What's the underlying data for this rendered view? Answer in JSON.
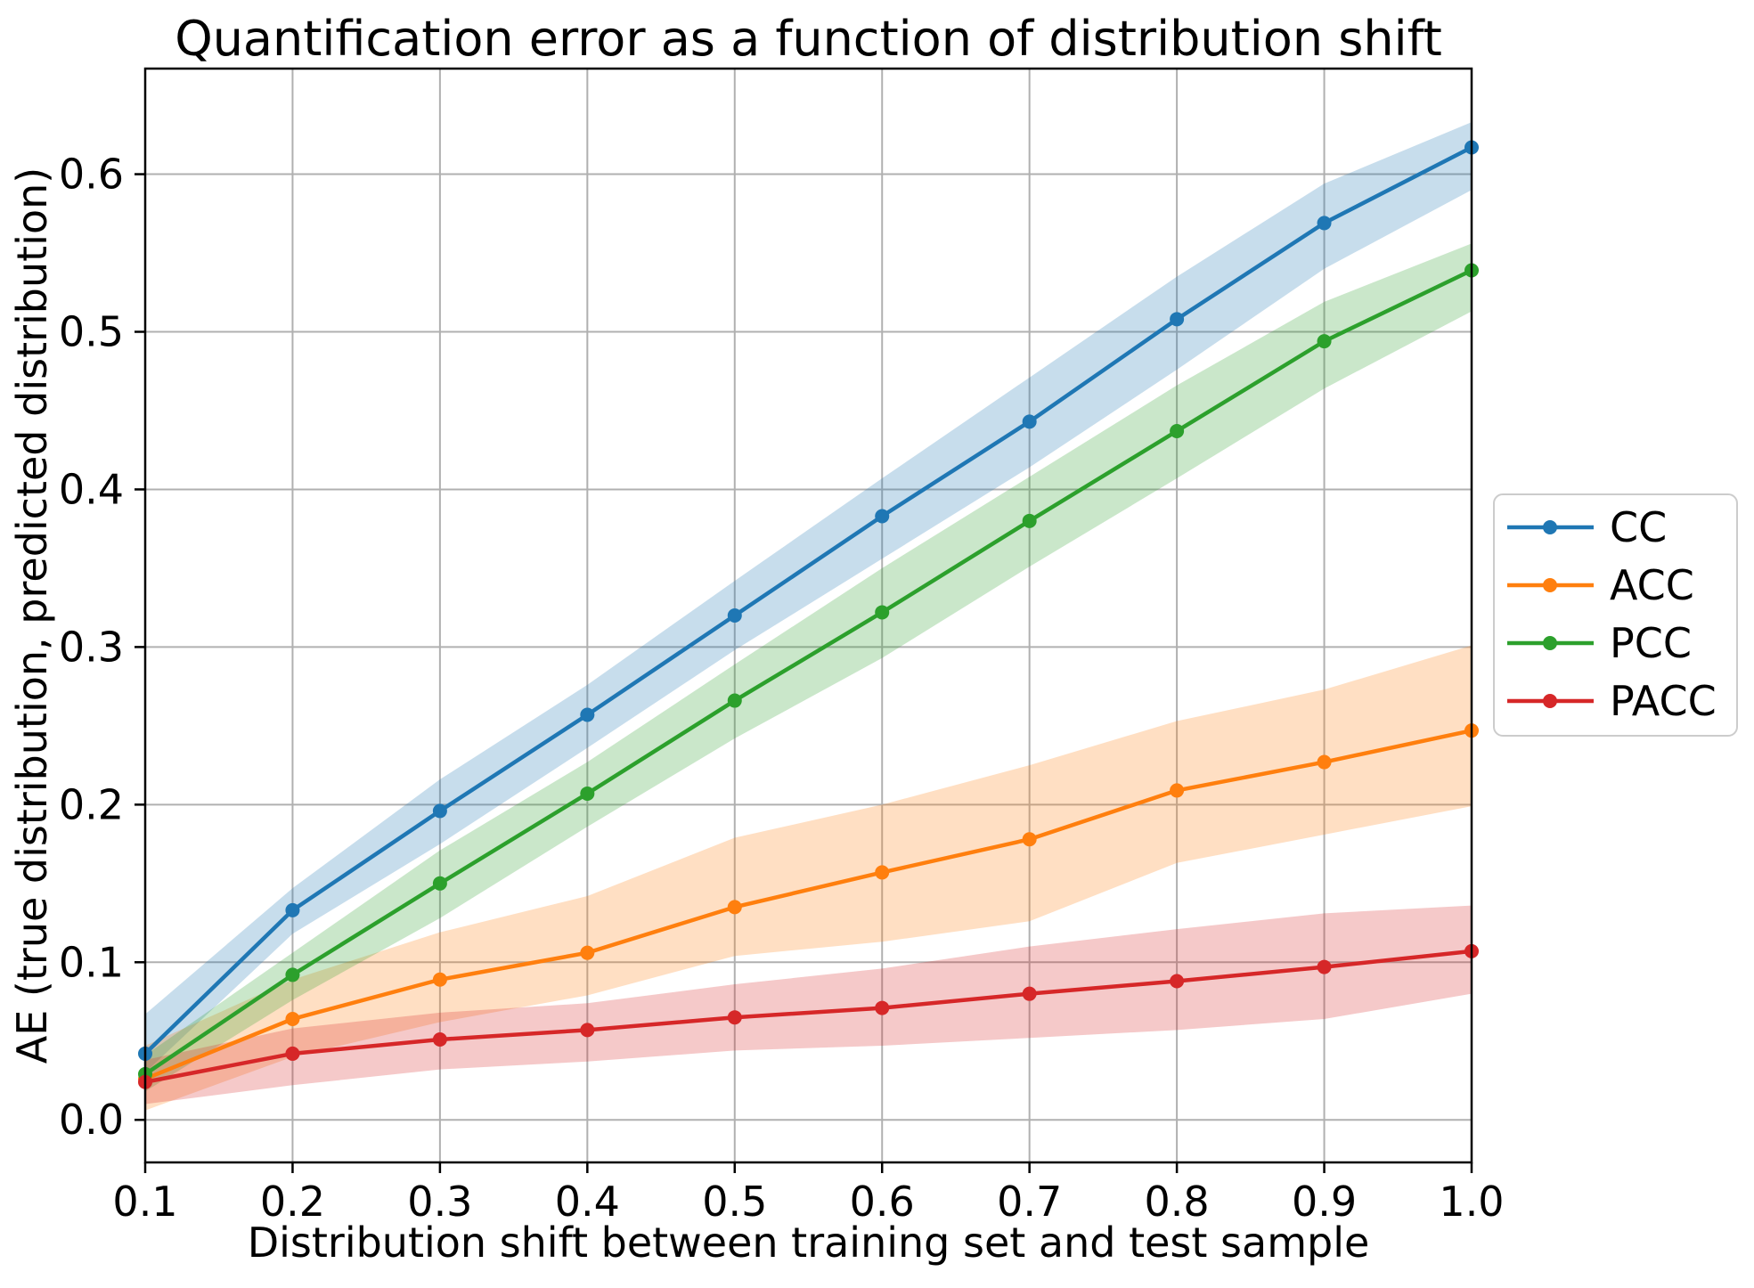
{
  "chart_data": {
    "type": "line",
    "title": "Quantification error as a function of distribution shift",
    "xlabel": "Distribution shift between training set and test sample",
    "ylabel": "AE (true distribution, predicted distribution)",
    "x": [
      0.1,
      0.2,
      0.3,
      0.4,
      0.5,
      0.6,
      0.7,
      0.8,
      0.9,
      1.0
    ],
    "xtick_labels": [
      "0.1",
      "0.2",
      "0.3",
      "0.4",
      "0.5",
      "0.6",
      "0.7",
      "0.8",
      "0.9",
      "1.0"
    ],
    "ytick_labels": [
      "0.0",
      "0.1",
      "0.2",
      "0.3",
      "0.4",
      "0.5",
      "0.6"
    ],
    "xlim": [
      0.1,
      1.0
    ],
    "ylim": [
      -0.027,
      0.667
    ],
    "grid": true,
    "grid_color": "#b0b0b0",
    "background": "#ffffff",
    "band_opacity": 0.25,
    "legend": {
      "position": "outside-right",
      "items": [
        "CC",
        "ACC",
        "PCC",
        "PACC"
      ]
    },
    "series": [
      {
        "name": "CC",
        "color": "#1f77b4",
        "values": [
          0.042,
          0.133,
          0.196,
          0.257,
          0.32,
          0.383,
          0.443,
          0.508,
          0.569,
          0.617
        ],
        "band_low": [
          0.03,
          0.118,
          0.175,
          0.236,
          0.298,
          0.356,
          0.414,
          0.476,
          0.54,
          0.59
        ],
        "band_high": [
          0.067,
          0.147,
          0.216,
          0.276,
          0.342,
          0.407,
          0.471,
          0.535,
          0.594,
          0.633
        ]
      },
      {
        "name": "ACC",
        "color": "#ff7f0e",
        "values": [
          0.026,
          0.064,
          0.089,
          0.106,
          0.135,
          0.157,
          0.178,
          0.209,
          0.227,
          0.247
        ],
        "band_low": [
          0.006,
          0.04,
          0.062,
          0.079,
          0.104,
          0.113,
          0.126,
          0.163,
          0.181,
          0.199
        ],
        "band_high": [
          0.047,
          0.089,
          0.119,
          0.142,
          0.179,
          0.2,
          0.225,
          0.253,
          0.273,
          0.301
        ]
      },
      {
        "name": "PCC",
        "color": "#2ca02c",
        "values": [
          0.029,
          0.092,
          0.15,
          0.207,
          0.266,
          0.322,
          0.38,
          0.437,
          0.494,
          0.539
        ],
        "band_low": [
          0.018,
          0.076,
          0.128,
          0.186,
          0.242,
          0.293,
          0.351,
          0.407,
          0.464,
          0.513
        ],
        "band_high": [
          0.041,
          0.106,
          0.171,
          0.227,
          0.289,
          0.35,
          0.408,
          0.466,
          0.519,
          0.556
        ]
      },
      {
        "name": "PACC",
        "color": "#d62728",
        "values": [
          0.024,
          0.042,
          0.051,
          0.057,
          0.065,
          0.071,
          0.08,
          0.088,
          0.097,
          0.107
        ],
        "band_low": [
          0.01,
          0.022,
          0.032,
          0.037,
          0.044,
          0.047,
          0.052,
          0.057,
          0.064,
          0.08
        ],
        "band_high": [
          0.038,
          0.058,
          0.068,
          0.074,
          0.086,
          0.096,
          0.11,
          0.121,
          0.131,
          0.136
        ]
      }
    ]
  }
}
